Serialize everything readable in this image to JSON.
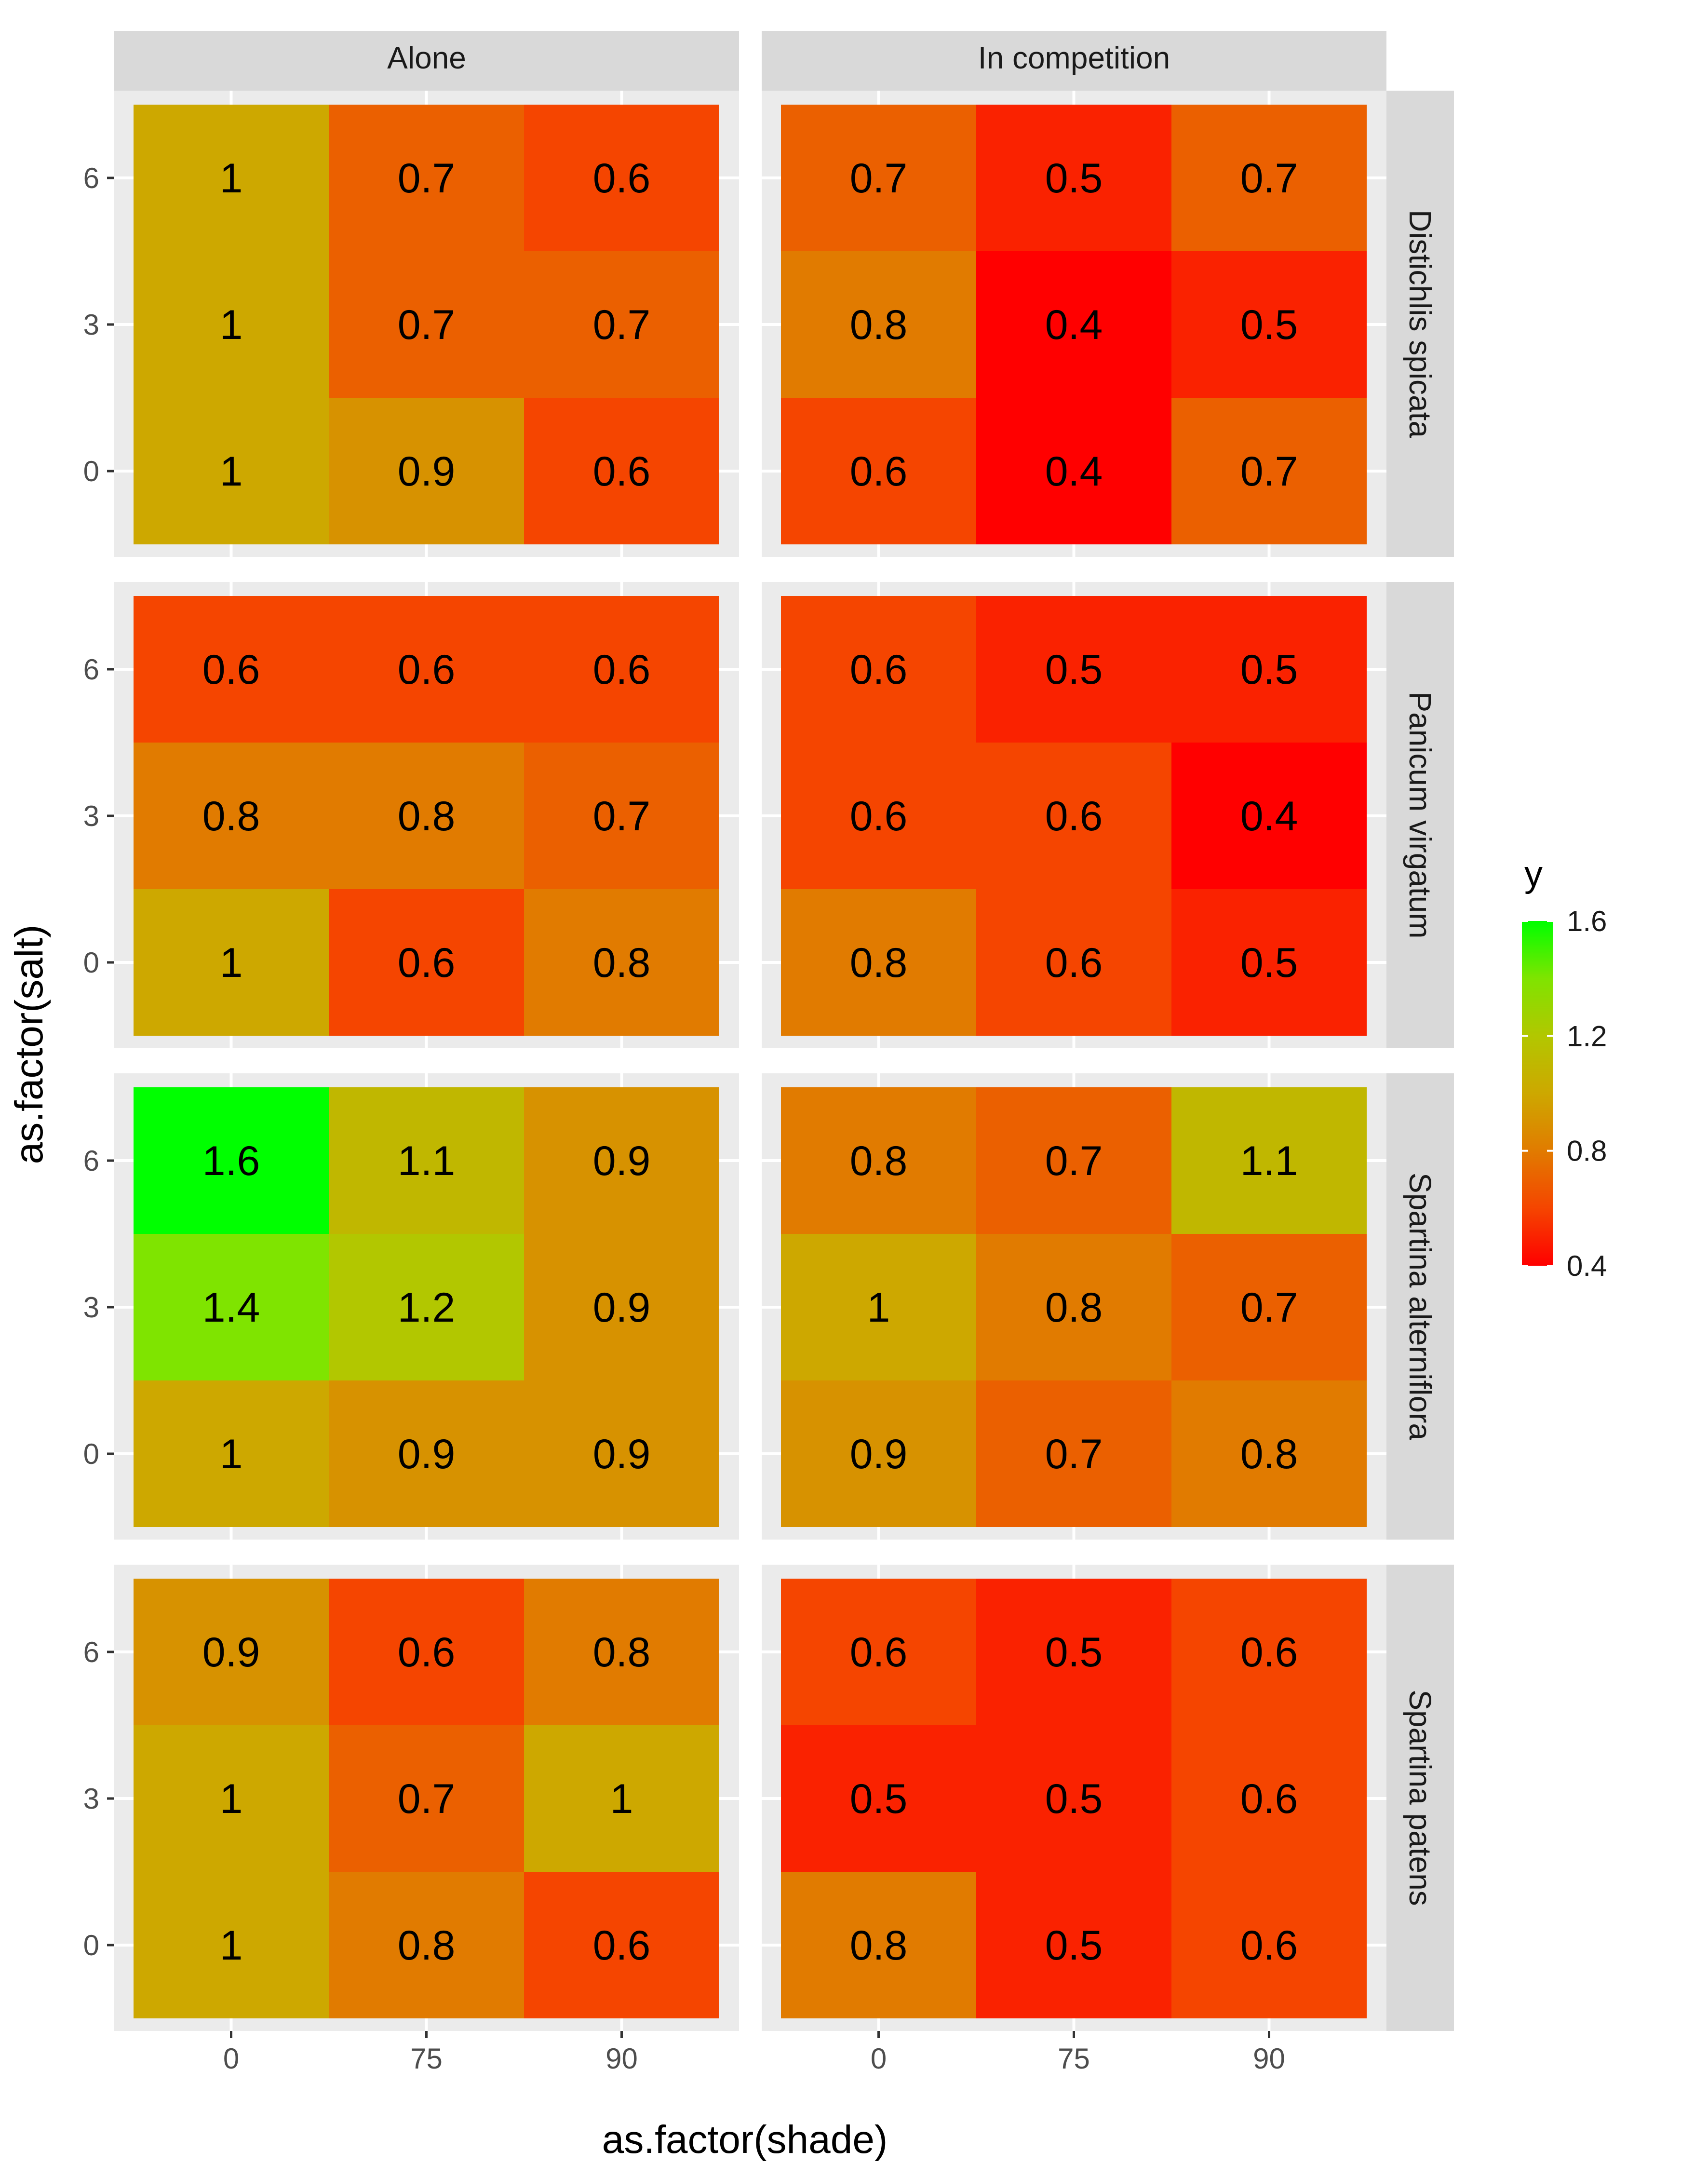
{
  "chart_data": {
    "type": "heatmap",
    "xlabel": "as.factor(shade)",
    "ylabel": "as.factor(salt)",
    "x_categories": [
      "0",
      "75",
      "90"
    ],
    "y_categories": [
      "0",
      "3",
      "6"
    ],
    "facet_columns": [
      "Alone",
      "In competition"
    ],
    "facet_rows": [
      "Distichlis spicata",
      "Panicum virgatum",
      "Spartina alterniflora",
      "Spartina patens"
    ],
    "panels": [
      {
        "column": "Alone",
        "row": "Distichlis spicata",
        "values": [
          [
            1,
            0.9,
            0.6
          ],
          [
            1,
            0.7,
            0.7
          ],
          [
            1,
            0.7,
            0.6
          ]
        ]
      },
      {
        "column": "In competition",
        "row": "Distichlis spicata",
        "values": [
          [
            0.6,
            0.4,
            0.7
          ],
          [
            0.8,
            0.4,
            0.5
          ],
          [
            0.7,
            0.5,
            0.7
          ]
        ]
      },
      {
        "column": "Alone",
        "row": "Panicum virgatum",
        "values": [
          [
            1,
            0.6,
            0.8
          ],
          [
            0.8,
            0.8,
            0.7
          ],
          [
            0.6,
            0.6,
            0.6
          ]
        ]
      },
      {
        "column": "In competition",
        "row": "Panicum virgatum",
        "values": [
          [
            0.8,
            0.6,
            0.5
          ],
          [
            0.6,
            0.6,
            0.4
          ],
          [
            0.6,
            0.5,
            0.5
          ]
        ]
      },
      {
        "column": "Alone",
        "row": "Spartina alterniflora",
        "values": [
          [
            1,
            0.9,
            0.9
          ],
          [
            1.4,
            1.2,
            0.9
          ],
          [
            1.6,
            1.1,
            0.9
          ]
        ]
      },
      {
        "column": "In competition",
        "row": "Spartina alterniflora",
        "values": [
          [
            0.9,
            0.7,
            0.8
          ],
          [
            1,
            0.8,
            0.7
          ],
          [
            0.8,
            0.7,
            1.1
          ]
        ]
      },
      {
        "column": "Alone",
        "row": "Spartina patens",
        "values": [
          [
            1,
            0.8,
            0.6
          ],
          [
            1,
            0.7,
            1
          ],
          [
            0.9,
            0.6,
            0.8
          ]
        ]
      },
      {
        "column": "In competition",
        "row": "Spartina patens",
        "values": [
          [
            0.8,
            0.5,
            0.6
          ],
          [
            0.5,
            0.5,
            0.6
          ],
          [
            0.6,
            0.5,
            0.6
          ]
        ]
      }
    ],
    "legend": {
      "title": "y",
      "ticks": [
        1.6,
        1.2,
        0.8,
        0.4
      ],
      "range": [
        0.4,
        1.6
      ],
      "low_color": "#ff0000",
      "high_color": "#00ff00",
      "position": "right"
    },
    "colors": {
      "panel_background": "#ebebeb",
      "grid": "#ffffff",
      "strip_background": "#d9d9d9"
    }
  }
}
